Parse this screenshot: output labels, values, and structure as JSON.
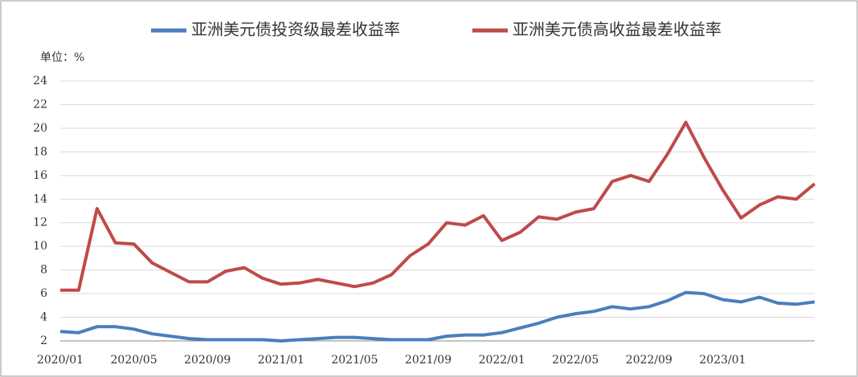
{
  "chart_data": {
    "type": "line",
    "legend": [
      "top"
    ],
    "unit_label": "单位：%",
    "categories": [
      "2020/01",
      null,
      null,
      null,
      "2020/05",
      null,
      null,
      null,
      "2020/09",
      null,
      null,
      null,
      "2021/01",
      null,
      null,
      null,
      "2021/05",
      null,
      null,
      null,
      "2021/09",
      null,
      null,
      null,
      "2022/01",
      null,
      null,
      null,
      "2022/05",
      null,
      null,
      null,
      "2022/09",
      null,
      null,
      null,
      "2023/01",
      null,
      null,
      null,
      null,
      null
    ],
    "series": [
      {
        "name": "亚洲美元债投资级最差收益率",
        "color": "#4a7ebb",
        "values": [
          2.8,
          2.7,
          3.2,
          3.2,
          3.0,
          2.6,
          2.4,
          2.2,
          2.1,
          2.1,
          2.1,
          2.1,
          2.0,
          2.1,
          2.2,
          2.3,
          2.3,
          2.2,
          2.1,
          2.1,
          2.1,
          2.4,
          2.5,
          2.5,
          2.7,
          3.1,
          3.5,
          4.0,
          4.3,
          4.5,
          4.9,
          4.7,
          4.9,
          5.4,
          6.1,
          6.0,
          5.5,
          5.3,
          5.7,
          5.2,
          5.1,
          5.3
        ]
      },
      {
        "name": "亚洲美元债高收益最差收益率",
        "color": "#be4b48",
        "values": [
          6.3,
          6.3,
          13.2,
          10.3,
          10.2,
          8.6,
          7.8,
          7.0,
          7.0,
          7.9,
          8.2,
          7.3,
          6.8,
          6.9,
          7.2,
          6.9,
          6.6,
          6.9,
          7.6,
          9.2,
          10.2,
          12.0,
          11.8,
          12.6,
          10.5,
          11.2,
          12.5,
          12.3,
          12.9,
          13.2,
          15.5,
          16.0,
          15.5,
          17.8,
          20.5,
          17.5,
          14.8,
          12.4,
          13.5,
          14.2,
          14.0,
          15.3
        ]
      }
    ],
    "ylim": [
      2,
      24
    ],
    "yticks": [
      2,
      4,
      6,
      8,
      10,
      12,
      14,
      16,
      18,
      20,
      22,
      24
    ],
    "grid": true
  }
}
